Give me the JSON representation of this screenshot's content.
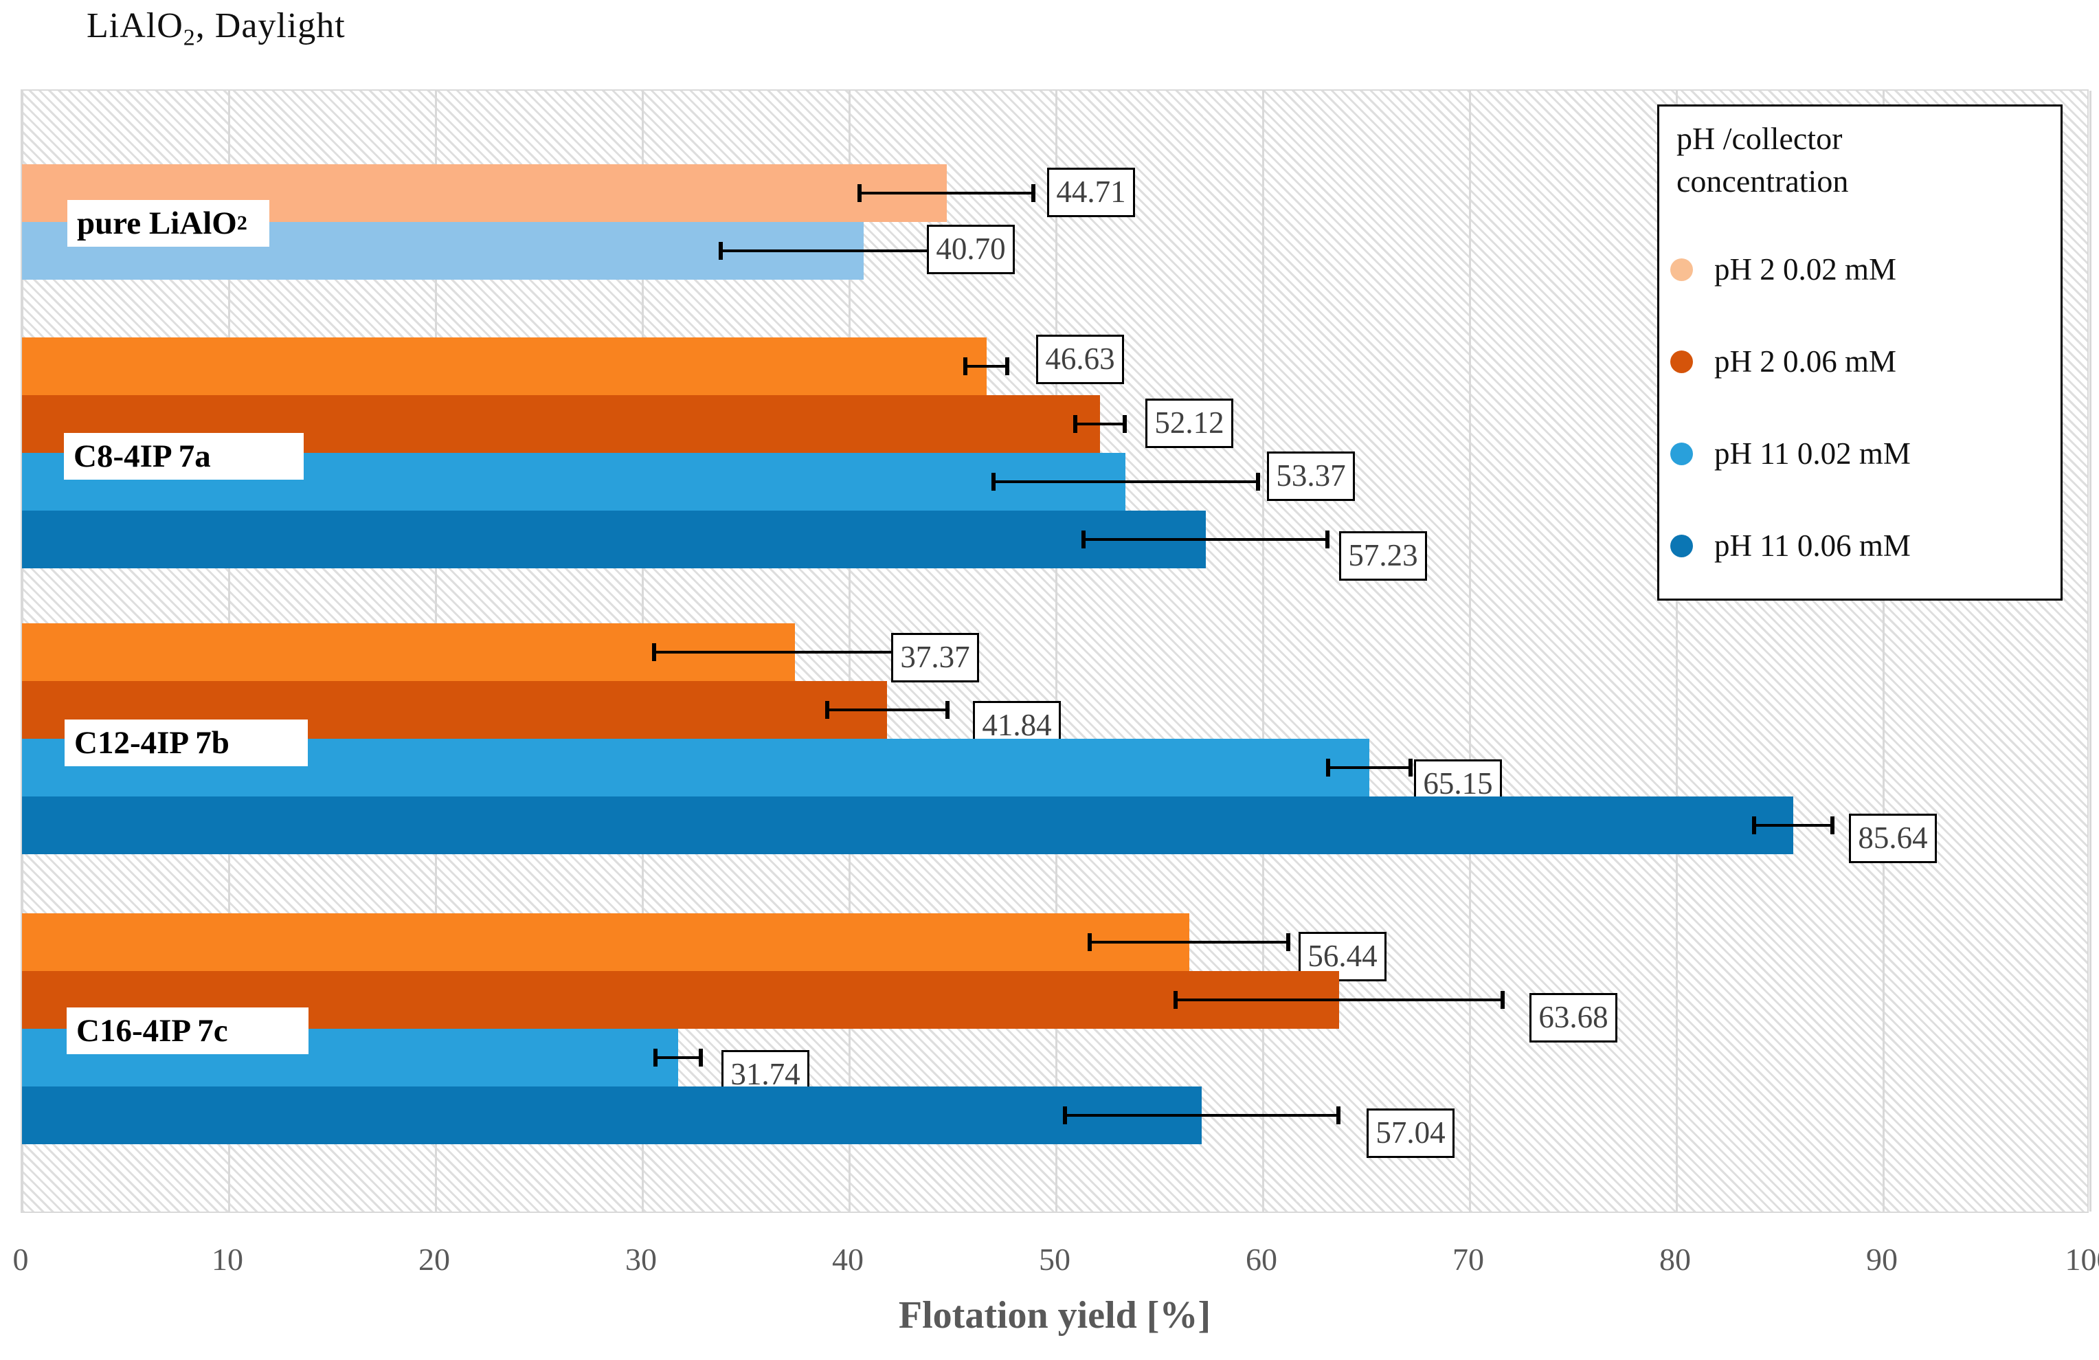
{
  "title": {
    "main": "LiAlO",
    "sub": "2",
    "rest": ", Daylight"
  },
  "chart_data": {
    "type": "bar",
    "orientation": "horizontal",
    "title": "LiAlO2, Daylight",
    "xlabel": "Flotation yield  [%]",
    "xlim": [
      0,
      100
    ],
    "xticks": [
      "0",
      "10",
      "20",
      "30",
      "40",
      "50",
      "60",
      "70",
      "80",
      "90",
      "100"
    ],
    "grid": "vertical",
    "plot_background": "light diagonal hatch",
    "legend": {
      "title": "pH /collector concentration",
      "position": "top-right",
      "entries": [
        {
          "label": "pH 2 0.02 mM",
          "color": "#F9BF92"
        },
        {
          "label": "pH 2 0.06 mM",
          "color": "#D5540A"
        },
        {
          "label": "pH 11 0.02 mM",
          "color": "#29A0DB"
        },
        {
          "label": "pH 11 0.06 mM",
          "color": "#0B76B4"
        }
      ]
    },
    "groups": [
      {
        "category": {
          "text": "pure LiAlO",
          "sub": "2"
        },
        "bars": [
          {
            "series": "pH 2 0.02 mM",
            "value": 44.71,
            "label": "44.71",
            "error": 4.3,
            "color": "#FBB183"
          },
          {
            "series": "pH 11 0.02 mM",
            "value": 40.7,
            "label": "40.70",
            "error": 7.0,
            "color": "#8EC3E9"
          }
        ]
      },
      {
        "category": {
          "text": "C8-4IP 7a",
          "sub": ""
        },
        "bars": [
          {
            "series": "pH 2 0.02 mM",
            "value": 46.63,
            "label": "46.63",
            "error": 1.1,
            "color": "#F9831F"
          },
          {
            "series": "pH 2 0.06 mM",
            "value": 52.12,
            "label": "52.12",
            "error": 1.3,
            "color": "#D5540A"
          },
          {
            "series": "pH 11 0.02 mM",
            "value": 53.37,
            "label": "53.37",
            "error": 6.5,
            "color": "#29A0DB"
          },
          {
            "series": "pH 11 0.06 mM",
            "value": 57.23,
            "label": "57.23",
            "error": 6.0,
            "color": "#0B76B4"
          }
        ]
      },
      {
        "category": {
          "text": "C12-4IP 7b",
          "sub": ""
        },
        "bars": [
          {
            "series": "pH 2 0.02 mM",
            "value": 37.37,
            "label": "37.37",
            "error": 6.9,
            "color": "#F9831F"
          },
          {
            "series": "pH 2 0.06 mM",
            "value": 41.84,
            "label": "41.84",
            "error": 3.0,
            "color": "#D5540A"
          },
          {
            "series": "pH 11 0.02 mM",
            "value": 65.15,
            "label": "65.15",
            "error": 2.1,
            "color": "#29A0DB"
          },
          {
            "series": "pH 11 0.06 mM",
            "value": 85.64,
            "label": "85.64",
            "error": 2.0,
            "color": "#0B76B4"
          }
        ]
      },
      {
        "category": {
          "text": "C16-4IP 7c",
          "sub": ""
        },
        "bars": [
          {
            "series": "pH 2 0.02 mM",
            "value": 56.44,
            "label": "56.44",
            "error": 4.9,
            "color": "#F9831F"
          },
          {
            "series": "pH 2 0.06 mM",
            "value": 63.68,
            "label": "63.68",
            "error": 8.0,
            "color": "#D5540A"
          },
          {
            "series": "pH 11 0.02 mM",
            "value": 31.74,
            "label": "31.74",
            "error": 1.2,
            "color": "#29A0DB"
          },
          {
            "series": "pH 11 0.06 mM",
            "value": 57.04,
            "label": "57.04",
            "error": 6.7,
            "color": "#0B76B4"
          }
        ]
      }
    ]
  }
}
